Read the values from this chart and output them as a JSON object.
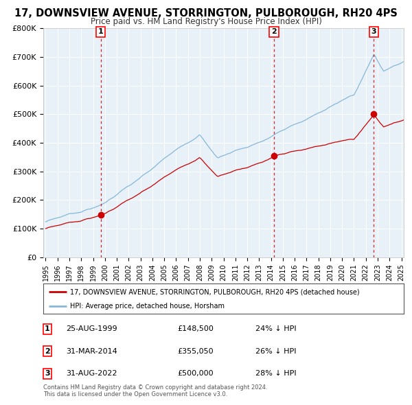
{
  "title": "17, DOWNSVIEW AVENUE, STORRINGTON, PULBOROUGH, RH20 4PS",
  "subtitle": "Price paid vs. HM Land Registry's House Price Index (HPI)",
  "title_fontsize": 10.5,
  "subtitle_fontsize": 9,
  "hpi_color": "#85b8d9",
  "price_color": "#cc0000",
  "plot_bg_color": "#e8f0f8",
  "grid_color": "#ffffff",
  "ylim": [
    0,
    800000
  ],
  "yticks": [
    0,
    100000,
    200000,
    300000,
    400000,
    500000,
    600000,
    700000,
    800000
  ],
  "ytick_labels": [
    "£0",
    "£100K",
    "£200K",
    "£300K",
    "£400K",
    "£500K",
    "£600K",
    "£700K",
    "£800K"
  ],
  "xmin_year": 1995,
  "xmax_year": 2025,
  "sale_prices": [
    148500,
    355050,
    500000
  ],
  "sale_labels": [
    "1",
    "2",
    "3"
  ],
  "annotation_date": [
    "25-AUG-1999",
    "31-MAR-2014",
    "31-AUG-2022"
  ],
  "annotation_price": [
    "£148,500",
    "£355,050",
    "£500,000"
  ],
  "annotation_hpi": [
    "24% ↓ HPI",
    "26% ↓ HPI",
    "28% ↓ HPI"
  ],
  "legend_label_red": "17, DOWNSVIEW AVENUE, STORRINGTON, PULBOROUGH, RH20 4PS (detached house)",
  "legend_label_blue": "HPI: Average price, detached house, Horsham",
  "footer": "Contains HM Land Registry data © Crown copyright and database right 2024.\nThis data is licensed under the Open Government Licence v3.0.",
  "xtick_years": [
    1995,
    1996,
    1997,
    1998,
    1999,
    2000,
    2001,
    2002,
    2003,
    2004,
    2005,
    2006,
    2007,
    2008,
    2009,
    2010,
    2011,
    2012,
    2013,
    2014,
    2015,
    2016,
    2017,
    2018,
    2019,
    2020,
    2021,
    2022,
    2023,
    2024,
    2025
  ]
}
